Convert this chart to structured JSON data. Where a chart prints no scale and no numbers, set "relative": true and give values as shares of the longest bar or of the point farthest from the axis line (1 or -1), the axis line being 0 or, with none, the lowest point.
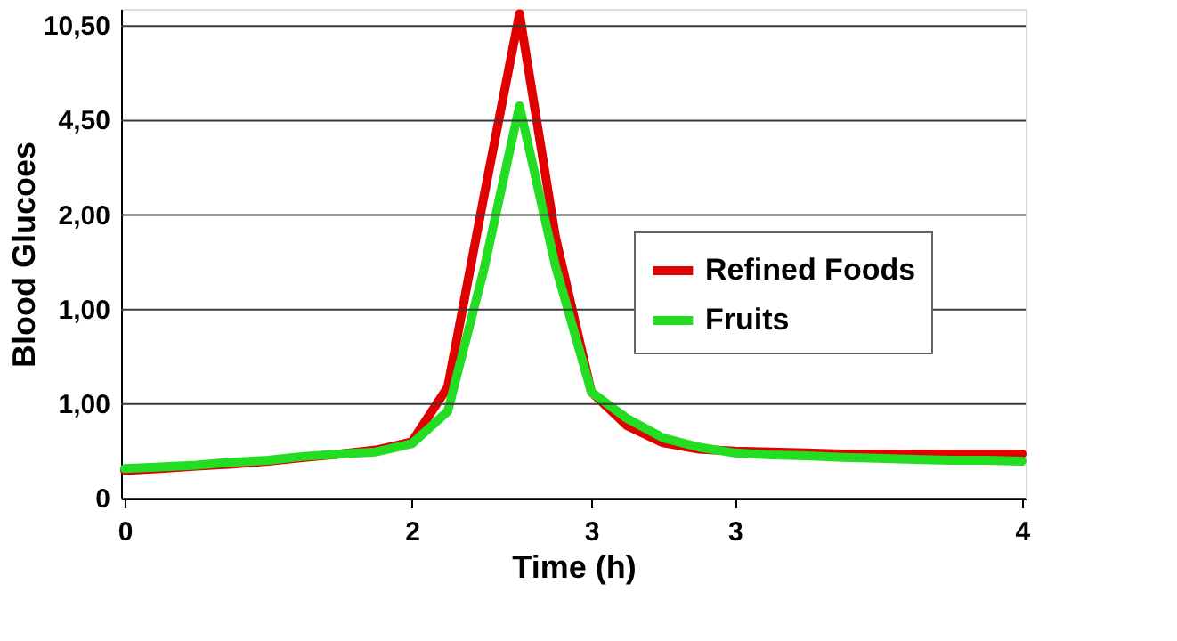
{
  "chart_data": {
    "type": "line",
    "xlabel": "Time (h)",
    "ylabel": "Blood Glucoes",
    "relative": true,
    "categories": [
      "0",
      null,
      null,
      null,
      null,
      null,
      null,
      null,
      "2",
      null,
      null,
      null,
      null,
      "3",
      null,
      null,
      null,
      "3",
      null,
      null,
      null,
      null,
      null,
      null,
      null,
      "4"
    ],
    "annotations": [
      "0",
      "1,00",
      "1,00",
      "2,00",
      "4,50",
      "10,50"
    ],
    "grid": "y",
    "legend": "right",
    "line_style": "solid",
    "marker": "none",
    "series": [
      {
        "name": "Refined Foods",
        "color": "#e00000",
        "values": [
          0.058,
          0.062,
          0.067,
          0.071,
          0.077,
          0.085,
          0.092,
          0.1,
          0.117,
          0.23,
          0.62,
          1,
          0.54,
          0.22,
          0.15,
          0.115,
          0.102,
          0.098,
          0.096,
          0.094,
          0.092,
          0.092,
          0.092,
          0.092,
          0.092,
          0.092
        ]
      },
      {
        "name": "Fruits",
        "color": "#22dd22",
        "values": [
          0.062,
          0.065,
          0.069,
          0.075,
          0.079,
          0.087,
          0.092,
          0.096,
          0.113,
          0.18,
          0.47,
          0.81,
          0.48,
          0.22,
          0.165,
          0.125,
          0.106,
          0.094,
          0.09,
          0.088,
          0.085,
          0.083,
          0.081,
          0.079,
          0.079,
          0.077
        ]
      }
    ]
  }
}
